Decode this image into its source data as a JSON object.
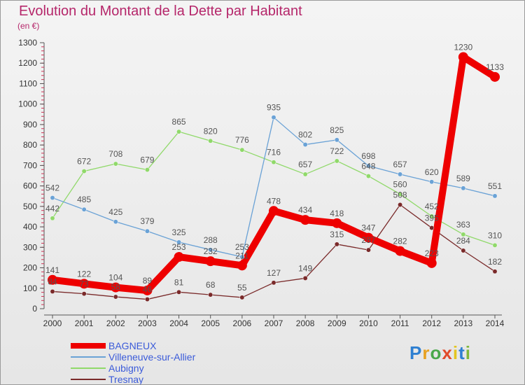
{
  "chart_data": {
    "type": "line",
    "title": "Evolution du Montant de la Dette par Habitant",
    "ylabel": "(en €)",
    "xlabel": "",
    "ylim": [
      0,
      1300
    ],
    "yticks": [
      0,
      100,
      200,
      300,
      400,
      500,
      600,
      700,
      800,
      900,
      1000,
      1100,
      1200,
      1300
    ],
    "x": [
      2000,
      2001,
      2002,
      2003,
      2004,
      2005,
      2006,
      2007,
      2008,
      2009,
      2010,
      2011,
      2012,
      2013,
      2014
    ],
    "grid": false,
    "legend_position": "bottom-left",
    "series": [
      {
        "name": "BAGNEUX",
        "color": "#ee0000",
        "values": [
          141,
          122,
          104,
          89,
          253,
          232,
          211,
          478,
          434,
          418,
          347,
          282,
          223,
          1230,
          1133
        ]
      },
      {
        "name": "Villeneuve-sur-Allier",
        "color": "#6aa2d6",
        "values": [
          542,
          485,
          425,
          379,
          325,
          288,
          253,
          935,
          802,
          825,
          698,
          657,
          620,
          589,
          551
        ]
      },
      {
        "name": "Aubigny",
        "color": "#90d96a",
        "values": [
          442,
          672,
          708,
          679,
          865,
          820,
          776,
          716,
          657,
          722,
          648,
          560,
          452,
          363,
          310
        ]
      },
      {
        "name": "Tresnay",
        "color": "#7a2a2a",
        "values": [
          84,
          73,
          58,
          46,
          81,
          68,
          55,
          127,
          149,
          315,
          287,
          508,
          395,
          284,
          182
        ]
      }
    ]
  },
  "brand": {
    "p": "P",
    "r": "r",
    "o": "o",
    "x": "x",
    "i": "i",
    "t": "t",
    "i2": "i"
  }
}
